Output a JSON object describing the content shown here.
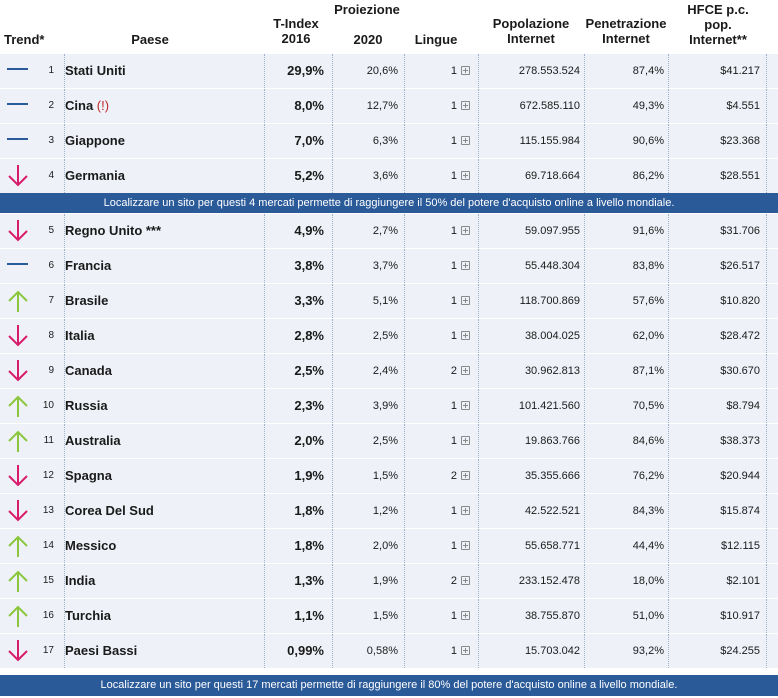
{
  "header": {
    "trend": "Trend*",
    "country": "Paese",
    "tindex_line1": "T-Index",
    "tindex_line2": "2016",
    "projection_top": "Proiezione",
    "projection_year": "2020",
    "languages": "Lingue",
    "population_line1": "Popolazione",
    "population_line2": "Internet",
    "penetration_line1": "Penetrazione",
    "penetration_line2": "Internet",
    "hfce_line1": "HFCE p.c.",
    "hfce_line2": "pop.",
    "hfce_line3": "Internet**"
  },
  "colors": {
    "flat": "#2b5a99",
    "down": "#d81b6a",
    "up": "#8cc63f",
    "banner": "#2b5a99"
  },
  "rows_group1": [
    {
      "trend": "flat",
      "trend_icon": "flat-dash-icon",
      "rank": "1",
      "country": "Stati Uniti",
      "tindex": "29,9%",
      "proj": "20,6%",
      "lang": "1",
      "pop": "278.553.524",
      "pen": "87,4%",
      "hfce": "$41.217"
    },
    {
      "trend": "flat",
      "trend_icon": "flat-dash-icon",
      "rank": "2",
      "country": "Cina",
      "country_note": "(!)",
      "tindex": "8,0%",
      "proj": "12,7%",
      "lang": "1",
      "pop": "672.585.110",
      "pen": "49,3%",
      "hfce": "$4.551"
    },
    {
      "trend": "flat",
      "trend_icon": "flat-dash-icon",
      "rank": "3",
      "country": "Giappone",
      "tindex": "7,0%",
      "proj": "6,3%",
      "lang": "1",
      "pop": "115.155.984",
      "pen": "90,6%",
      "hfce": "$23.368"
    },
    {
      "trend": "down",
      "trend_icon": "arrow-down-icon",
      "rank": "4",
      "country": "Germania",
      "tindex": "5,2%",
      "proj": "3,6%",
      "lang": "1",
      "pop": "69.718.664",
      "pen": "86,2%",
      "hfce": "$28.551"
    }
  ],
  "banner1": "Localizzare un sito per questi 4 mercati permette di raggiungere il 50% del potere d'acquisto online a livello mondiale.",
  "rows_group2": [
    {
      "trend": "down",
      "trend_icon": "arrow-down-icon",
      "rank": "5",
      "country": "Regno Unito ***",
      "tindex": "4,9%",
      "proj": "2,7%",
      "lang": "1",
      "pop": "59.097.955",
      "pen": "91,6%",
      "hfce": "$31.706"
    },
    {
      "trend": "flat",
      "trend_icon": "flat-dash-icon",
      "rank": "6",
      "country": "Francia",
      "tindex": "3,8%",
      "proj": "3,7%",
      "lang": "1",
      "pop": "55.448.304",
      "pen": "83,8%",
      "hfce": "$26.517"
    },
    {
      "trend": "up",
      "trend_icon": "arrow-up-icon",
      "rank": "7",
      "country": "Brasile",
      "tindex": "3,3%",
      "proj": "5,1%",
      "lang": "1",
      "pop": "118.700.869",
      "pen": "57,6%",
      "hfce": "$10.820"
    },
    {
      "trend": "down",
      "trend_icon": "arrow-down-icon",
      "rank": "8",
      "country": "Italia",
      "tindex": "2,8%",
      "proj": "2,5%",
      "lang": "1",
      "pop": "38.004.025",
      "pen": "62,0%",
      "hfce": "$28.472"
    },
    {
      "trend": "down",
      "trend_icon": "arrow-down-icon",
      "rank": "9",
      "country": "Canada",
      "tindex": "2,5%",
      "proj": "2,4%",
      "lang": "2",
      "pop": "30.962.813",
      "pen": "87,1%",
      "hfce": "$30.670"
    },
    {
      "trend": "up",
      "trend_icon": "arrow-up-icon",
      "rank": "10",
      "country": "Russia",
      "tindex": "2,3%",
      "proj": "3,9%",
      "lang": "1",
      "pop": "101.421.560",
      "pen": "70,5%",
      "hfce": "$8.794"
    },
    {
      "trend": "up",
      "trend_icon": "arrow-up-icon",
      "rank": "11",
      "country": "Australia",
      "tindex": "2,0%",
      "proj": "2,5%",
      "lang": "1",
      "pop": "19.863.766",
      "pen": "84,6%",
      "hfce": "$38.373"
    },
    {
      "trend": "down",
      "trend_icon": "arrow-down-icon",
      "rank": "12",
      "country": "Spagna",
      "tindex": "1,9%",
      "proj": "1,5%",
      "lang": "2",
      "pop": "35.355.666",
      "pen": "76,2%",
      "hfce": "$20.944"
    },
    {
      "trend": "down",
      "trend_icon": "arrow-down-icon",
      "rank": "13",
      "country": "Corea Del Sud",
      "tindex": "1,8%",
      "proj": "1,2%",
      "lang": "1",
      "pop": "42.522.521",
      "pen": "84,3%",
      "hfce": "$15.874"
    },
    {
      "trend": "up",
      "trend_icon": "arrow-up-icon",
      "rank": "14",
      "country": "Messico",
      "tindex": "1,8%",
      "proj": "2,0%",
      "lang": "1",
      "pop": "55.658.771",
      "pen": "44,4%",
      "hfce": "$12.115"
    },
    {
      "trend": "up",
      "trend_icon": "arrow-up-icon",
      "rank": "15",
      "country": "India",
      "tindex": "1,3%",
      "proj": "1,9%",
      "lang": "2",
      "pop": "233.152.478",
      "pen": "18,0%",
      "hfce": "$2.101"
    },
    {
      "trend": "up",
      "trend_icon": "arrow-up-icon",
      "rank": "16",
      "country": "Turchia",
      "tindex": "1,1%",
      "proj": "1,5%",
      "lang": "1",
      "pop": "38.755.870",
      "pen": "51,0%",
      "hfce": "$10.917"
    },
    {
      "trend": "down",
      "trend_icon": "arrow-down-icon",
      "rank": "17",
      "country": "Paesi Bassi",
      "tindex": "0,99%",
      "proj": "0,58%",
      "lang": "1",
      "pop": "15.703.042",
      "pen": "93,2%",
      "hfce": "$24.255"
    }
  ],
  "banner2": "Localizzare un sito per questi 17 mercati permette di raggiungere il 80% del potere d'acquisto online a livello mondiale."
}
